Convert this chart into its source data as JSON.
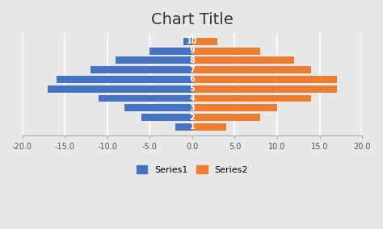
{
  "title": "Chart Title",
  "series1_label": "Series1",
  "series2_label": "Series2",
  "categories": [
    "1",
    "2",
    "3",
    "4",
    "5",
    "6",
    "7",
    "8",
    "9",
    "10"
  ],
  "series1_values": [
    -2,
    -6,
    -8,
    -11,
    -17,
    -16,
    -12,
    -9,
    -5,
    -1
  ],
  "series2_values": [
    4,
    8,
    10,
    14,
    17,
    17,
    14,
    12,
    8,
    3
  ],
  "series1_color": "#4472C4",
  "series2_color": "#ED7D31",
  "xlim": [
    -20,
    20
  ],
  "xticks": [
    -20.0,
    -15.0,
    -10.0,
    -5.0,
    0.0,
    5.0,
    10.0,
    15.0,
    20.0
  ],
  "background_color": "#E8E8E8",
  "title_fontsize": 14,
  "bar_height": 0.75,
  "grid_color": "#ffffff"
}
